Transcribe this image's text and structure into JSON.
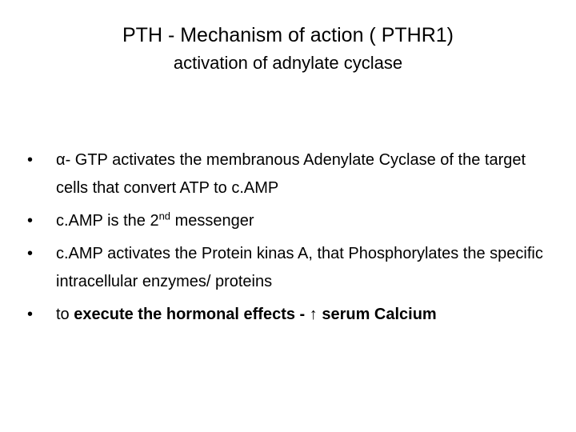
{
  "title": "PTH - Mechanism of action ( PTHR1)",
  "subtitle": "activation of adnylate cyclase",
  "bullets": [
    {
      "pre": "α- GTP activates the membranous Adenylate Cyclase of the target cells that convert ATP to c.AMP",
      "sup": "",
      "post": "",
      "bold": ""
    },
    {
      "pre": " c.AMP is the 2",
      "sup": "nd",
      "post": " messenger",
      "bold": ""
    },
    {
      "pre": " c.AMP activates the Protein kinas A, that Phosphorylates the specific intracellular enzymes/ proteins",
      "sup": "",
      "post": "",
      "bold": ""
    },
    {
      "pre": "to ",
      "sup": "",
      "post": "",
      "bold": "execute the hormonal effects - ↑ serum Calcium"
    }
  ]
}
